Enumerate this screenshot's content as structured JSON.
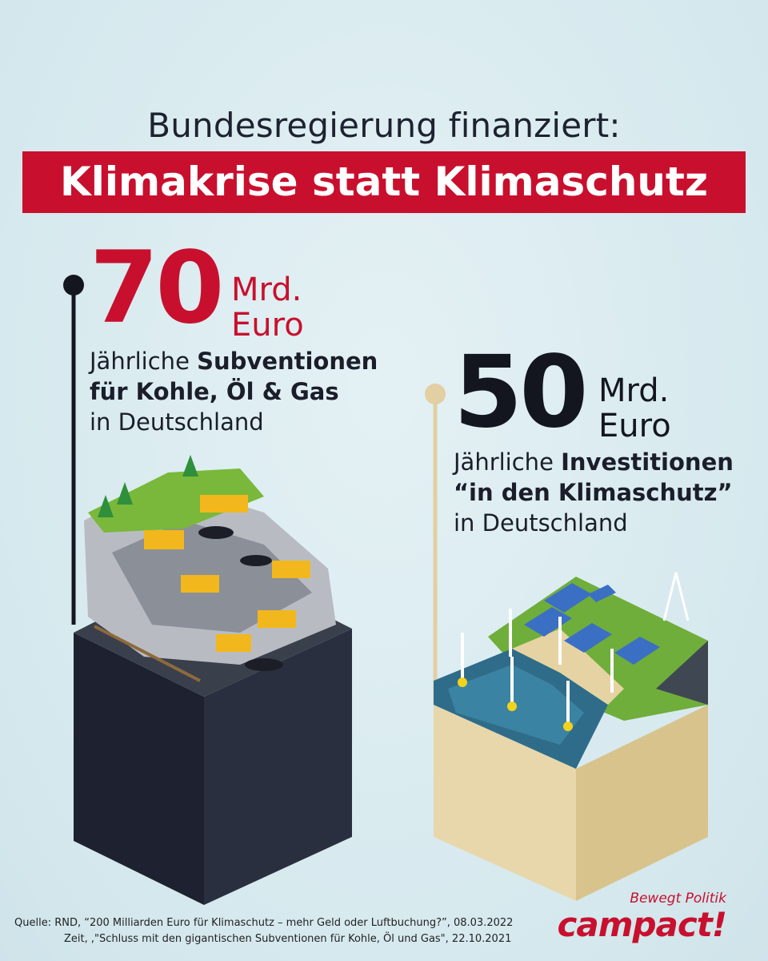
{
  "header": {
    "headline": "Bundesregierung finanziert:",
    "banner": "Klimakrise statt Klimaschutz"
  },
  "chart_data": {
    "type": "bar",
    "categories": [
      "Subventionen für Kohle, Öl & Gas",
      "Investitionen in den Klimaschutz"
    ],
    "values": [
      70,
      50
    ],
    "unit": "Mrd. Euro",
    "colors": [
      "#c8102e",
      "#14161f"
    ]
  },
  "left": {
    "value": "70",
    "unit_line1": "Mrd.",
    "unit_line2": "Euro",
    "desc_line1_prefix": "Jährliche ",
    "desc_line1_bold": "Subventionen",
    "desc_line2_bold": "für Kohle, Öl & Gas",
    "desc_line3": "in Deutschland"
  },
  "right": {
    "value": "50",
    "unit_line1": "Mrd.",
    "unit_line2": "Euro",
    "desc_line1_prefix": "Jährliche ",
    "desc_line1_bold": "Investitionen",
    "desc_line2_bold": "“in den Klimaschutz”",
    "desc_line3": "in Deutschland"
  },
  "source": {
    "line1": "Quelle: RND, “200 Milliarden Euro für Klimaschutz – mehr Geld oder Luftbuchung?”, 08.03.2022",
    "line2": "Zeit, ,\"Schluss mit den gigantischen Subventionen für Kohle, Öl und Gas\", 22.10.2021"
  },
  "brand": {
    "tagline": "Bewegt Politik",
    "name": "campact!"
  },
  "colors": {
    "accent_red": "#c8102e",
    "dark": "#14161f",
    "sand": "#e6d3a3",
    "background": "#d9ebf0"
  }
}
